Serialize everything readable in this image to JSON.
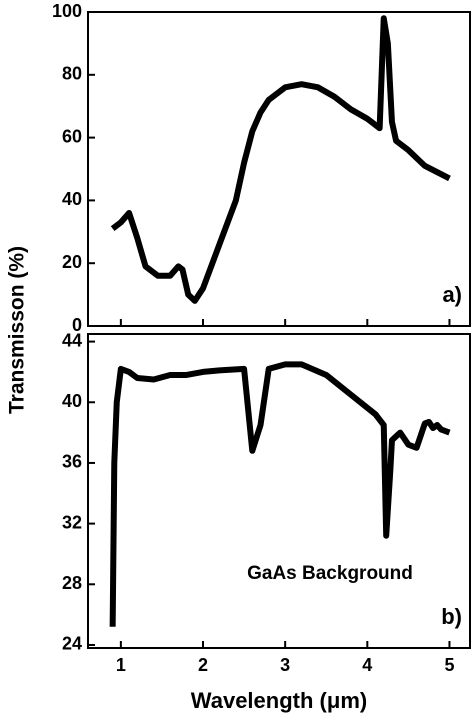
{
  "chart_data": [
    {
      "type": "line",
      "ylabel": "Transmisson (%)",
      "annotation": "a)",
      "x": [
        0.9,
        1.0,
        1.1,
        1.2,
        1.3,
        1.45,
        1.6,
        1.7,
        1.75,
        1.82,
        1.9,
        2.0,
        2.2,
        2.4,
        2.5,
        2.6,
        2.7,
        2.8,
        3.0,
        3.2,
        3.4,
        3.6,
        3.8,
        4.0,
        4.15,
        4.2,
        4.25,
        4.3,
        4.35,
        4.5,
        4.7,
        5.0
      ],
      "series": [
        {
          "color": "#000000",
          "values": [
            31,
            33,
            36,
            28,
            19,
            16,
            16,
            19,
            18,
            10,
            8,
            12,
            26,
            40,
            52,
            62,
            68,
            72,
            76,
            77,
            76,
            73,
            69,
            66,
            63,
            98,
            90,
            65,
            59,
            56,
            51,
            47
          ]
        }
      ],
      "xlim": [
        0.6,
        5.25
      ],
      "xticks": [
        1,
        2,
        3,
        4,
        5
      ],
      "ylim": [
        0,
        100
      ],
      "yticks": [
        0,
        20,
        40,
        60,
        80,
        100
      ]
    },
    {
      "type": "line",
      "xlabel": "Wavelength (μm)",
      "annotation": "b)",
      "note": "GaAs Background",
      "x": [
        0.9,
        0.92,
        0.95,
        1.0,
        1.1,
        1.2,
        1.4,
        1.6,
        1.8,
        2.0,
        2.2,
        2.5,
        2.6,
        2.7,
        2.8,
        3.0,
        3.2,
        3.5,
        3.8,
        4.1,
        4.2,
        4.23,
        4.28,
        4.3,
        4.4,
        4.5,
        4.6,
        4.7,
        4.75,
        4.8,
        4.85,
        4.9,
        5.0
      ],
      "series": [
        {
          "color": "#000000",
          "values": [
            25.2,
            36,
            40,
            42.2,
            42,
            41.6,
            41.5,
            41.8,
            41.8,
            42,
            42.1,
            42.2,
            36.8,
            38.5,
            42.2,
            42.5,
            42.5,
            41.8,
            40.5,
            39.2,
            38.5,
            31.2,
            35.5,
            37.5,
            38,
            37.2,
            37,
            38.6,
            38.7,
            38.3,
            38.5,
            38.2,
            38
          ]
        }
      ],
      "xlim": [
        0.6,
        5.25
      ],
      "xticks": [
        1,
        2,
        3,
        4,
        5
      ],
      "ylim": [
        23.8,
        44.5
      ],
      "yticks": [
        24,
        28,
        32,
        36,
        40,
        44
      ]
    }
  ]
}
